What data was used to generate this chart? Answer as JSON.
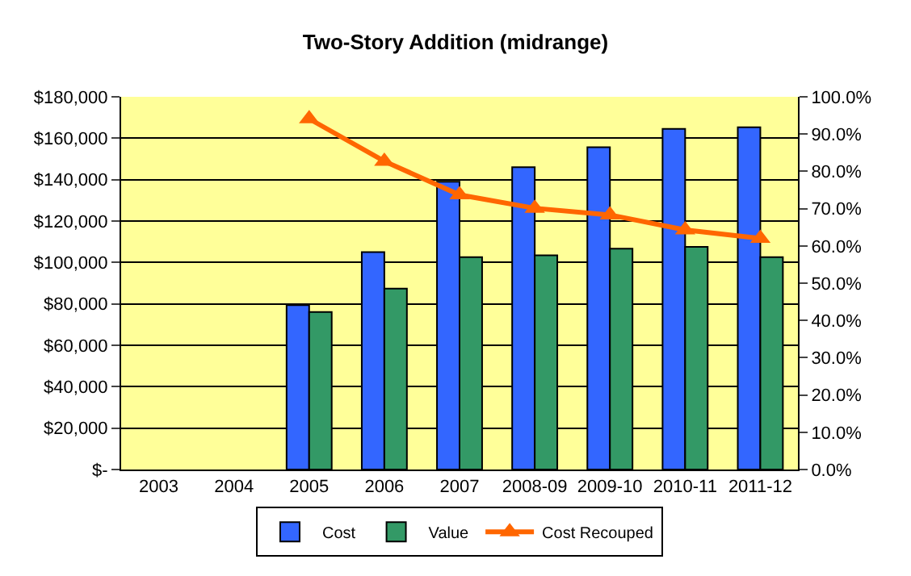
{
  "chart_data": {
    "type": "bar",
    "title": "Two-Story Addition (midrange)",
    "categories": [
      "2003",
      "2004",
      "2005",
      "2006",
      "2007",
      "2008-09",
      "2009-10",
      "2010-11",
      "2011-12"
    ],
    "series": [
      {
        "name": "Cost",
        "color": "#3366ff",
        "values": [
          null,
          null,
          79400,
          105000,
          139000,
          146000,
          155700,
          164500,
          165300
        ]
      },
      {
        "name": "Value",
        "color": "#339966",
        "values": [
          null,
          null,
          76100,
          87400,
          102600,
          103400,
          106700,
          107500,
          102600
        ]
      },
      {
        "name": "Cost Recouped",
        "type": "line",
        "axis": "y2",
        "marker": "triangle",
        "color": "#ff6600",
        "values": [
          null,
          null,
          94.1,
          82.7,
          73.7,
          70.1,
          68.3,
          64.3,
          62.0
        ]
      }
    ],
    "ylim": [
      0,
      180000
    ],
    "yticks": [
      {
        "value": 0,
        "label": "$-"
      },
      {
        "value": 20000,
        "label": "$20,000"
      },
      {
        "value": 40000,
        "label": "$40,000"
      },
      {
        "value": 60000,
        "label": "$60,000"
      },
      {
        "value": 80000,
        "label": "$80,000"
      },
      {
        "value": 100000,
        "label": "$100,000"
      },
      {
        "value": 120000,
        "label": "$120,000"
      },
      {
        "value": 140000,
        "label": "$140,000"
      },
      {
        "value": 160000,
        "label": "$160,000"
      },
      {
        "value": 180000,
        "label": "$180,000"
      }
    ],
    "y2lim": [
      0,
      100
    ],
    "y2ticks": [
      {
        "value": 0,
        "label": "0.0%"
      },
      {
        "value": 10,
        "label": "10.0%"
      },
      {
        "value": 20,
        "label": "20.0%"
      },
      {
        "value": 30,
        "label": "30.0%"
      },
      {
        "value": 40,
        "label": "40.0%"
      },
      {
        "value": 50,
        "label": "50.0%"
      },
      {
        "value": 60,
        "label": "60.0%"
      },
      {
        "value": 70,
        "label": "70.0%"
      },
      {
        "value": 80,
        "label": "80.0%"
      },
      {
        "value": 90,
        "label": "90.0%"
      },
      {
        "value": 100,
        "label": "100.0%"
      }
    ],
    "grid": "y",
    "legend": "bottom"
  }
}
